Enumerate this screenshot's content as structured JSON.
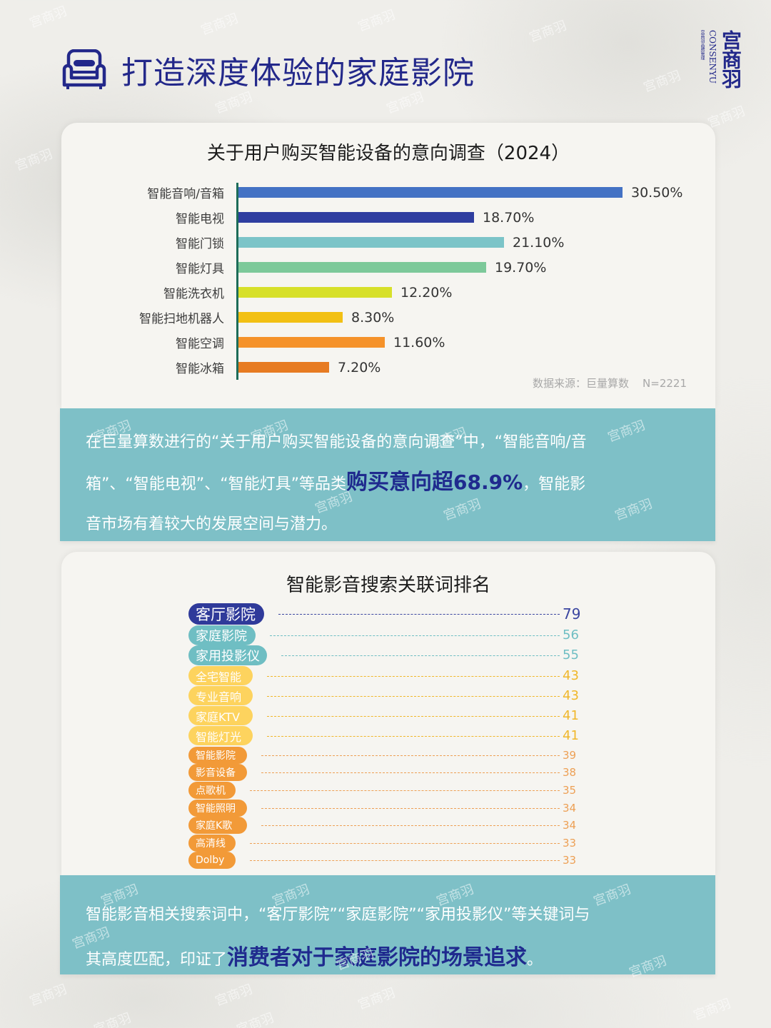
{
  "header": {
    "title": "打造深度体验的家庭影院",
    "icon": "sofa-icon"
  },
  "logo": {
    "cn": "宫商羽",
    "en": "CONSENYU",
    "sub": "宫商羽品牌管理"
  },
  "watermark": "宫商羽",
  "colors": {
    "brand_navy": "#23288a",
    "teal_box": "#7ec0c7",
    "highlight": "#1f2a8e",
    "axis": "#1d6c58"
  },
  "chart_data": [
    {
      "type": "bar",
      "orientation": "horizontal",
      "title": "关于用户购买智能设备的意向调查（2024）",
      "categories": [
        "智能音响/音箱",
        "智能电视",
        "智能门锁",
        "智能灯具",
        "智能洗衣机",
        "智能扫地机器人",
        "智能空调",
        "智能冰箱"
      ],
      "values": [
        30.5,
        18.7,
        21.1,
        19.7,
        12.2,
        8.3,
        11.6,
        7.2
      ],
      "value_labels": [
        "30.50%",
        "18.70%",
        "21.10%",
        "19.70%",
        "12.20%",
        "8.30%",
        "11.60%",
        "7.20%"
      ],
      "bar_colors": [
        "#4472c4",
        "#2f3ea0",
        "#7cc4c8",
        "#7dc99a",
        "#d7e02a",
        "#f2c014",
        "#f5922a",
        "#e77b22"
      ],
      "unit": "%",
      "source": "数据来源：巨量算数",
      "sample": "N=2221",
      "xlabel": "",
      "ylabel": "",
      "xlim": [
        0,
        31
      ],
      "grid": false,
      "legend": "none"
    },
    {
      "type": "bar",
      "orientation": "horizontal",
      "style": "ranked-pills-with-dotted-leaders",
      "title": "智能影音搜索关联词排名",
      "categories": [
        "客厅影院",
        "家庭影院",
        "家用投影仪",
        "全宅智能",
        "专业音响",
        "家庭KTV",
        "智能灯光",
        "智能影院",
        "影音设备",
        "点歌机",
        "智能照明",
        "家庭K歌",
        "高清线",
        "Dolby"
      ],
      "values": [
        79,
        56,
        55,
        43,
        43,
        41,
        41,
        39,
        38,
        35,
        34,
        34,
        33,
        33
      ],
      "tier_colors": [
        "#2f3a9a",
        "#6fbec3",
        "#6fbec3",
        "#fdd35e",
        "#fdd35e",
        "#fdd35e",
        "#fdd35e",
        "#f29a38",
        "#f29a38",
        "#f29a38",
        "#f29a38",
        "#f29a38",
        "#f29a38",
        "#f29a38"
      ],
      "value_colors": [
        "#3a45a0",
        "#6fbec3",
        "#6fbec3",
        "#f0b72a",
        "#f0b72a",
        "#f0b72a",
        "#f0b72a",
        "#eda055",
        "#eda055",
        "#eda055",
        "#eda055",
        "#eda055",
        "#eda055",
        "#eda055"
      ]
    }
  ],
  "summary1": {
    "line1": "在巨量算数进行的“关于用户购买智能设备的意向调查”中，“智能音响/音",
    "line2_pre": "箱”、“智能电视”、“智能灯具”等品类",
    "line2_hl": "购买意向超",
    "line2_num": "68.9%",
    "line2_post": "，智能影",
    "line3": "音市场有着较大的发展空间与潜力。"
  },
  "summary2": {
    "line1": "智能影音相关搜索词中，“客厅影院”“家庭影院”“家用投影仪”等关键词与",
    "line2_pre": "其高度匹配，印证了",
    "line2_hl": "消费者对于家庭影院的场景追求",
    "line2_post": "。"
  }
}
